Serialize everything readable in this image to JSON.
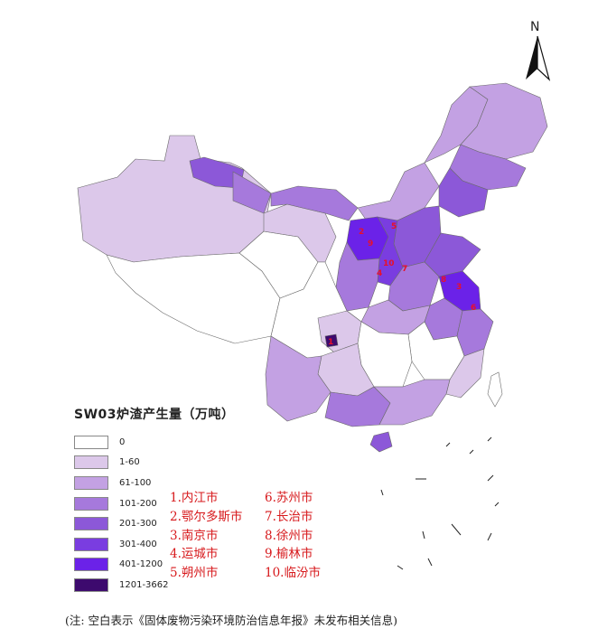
{
  "compass": {
    "label": "N",
    "icon": "north-arrow-icon"
  },
  "legend": {
    "title": "SW03炉渣产生量（万吨）",
    "items": [
      {
        "label": "0",
        "color": "#ffffff"
      },
      {
        "label": "1-60",
        "color": "#dcc8ea"
      },
      {
        "label": "61-100",
        "color": "#c3a1e3"
      },
      {
        "label": "101-200",
        "color": "#a679dc"
      },
      {
        "label": "201-300",
        "color": "#8c58d8"
      },
      {
        "label": "301-400",
        "color": "#7a3de0"
      },
      {
        "label": "401-1200",
        "color": "#6b22e8"
      },
      {
        "label": "1201-3662",
        "color": "#3d0a6e"
      }
    ]
  },
  "cities": [
    "1.内江市",
    "2.鄂尔多斯市",
    "3.南京市",
    "4.运城市",
    "5.朔州市",
    "6.苏州市",
    "7.长治市",
    "8.徐州市",
    "9.榆林市",
    "10.临汾市"
  ],
  "markers": [
    "1",
    "2",
    "3",
    "4",
    "5",
    "6",
    "7",
    "8",
    "9",
    "10"
  ],
  "note": "(注:  空白表示《固体废物污染环境防治信息年报》未发布相关信息)",
  "colors": {
    "outline": "#555555",
    "label_red": "#e8102a"
  }
}
